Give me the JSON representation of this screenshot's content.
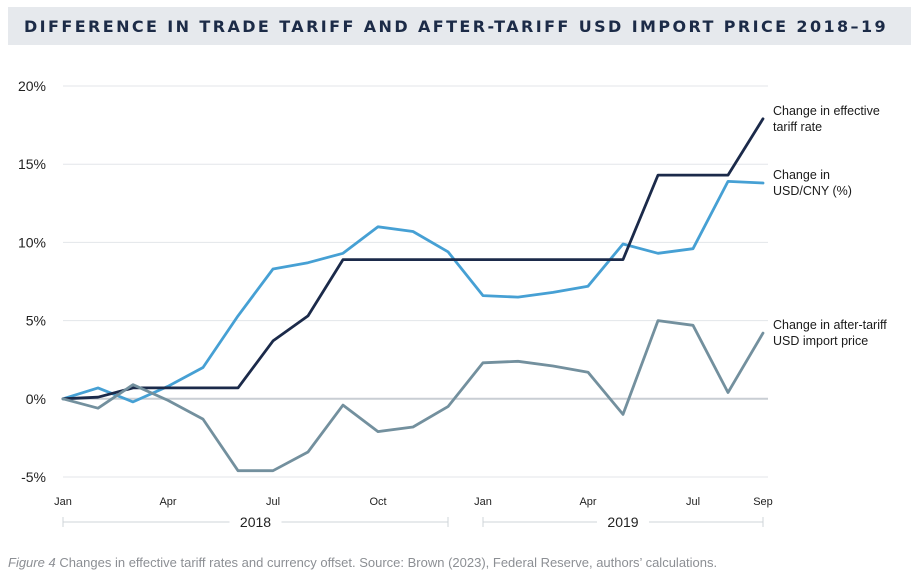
{
  "title": "DIFFERENCE IN TRADE TARIFF AND AFTER-TARIFF USD IMPORT PRICE 2018–19",
  "caption": {
    "figure": "Figure 4",
    "text": " Changes in effective tariff rates and currency offset. Source: Brown (2023), Federal Reserve, authors’ calculations."
  },
  "chart_data": {
    "type": "line",
    "ylim": [
      -5,
      20
    ],
    "y_ticks": [
      -5,
      0,
      5,
      10,
      15,
      20
    ],
    "y_tick_labels": [
      "-5%",
      "0%",
      "5%",
      "10%",
      "15%",
      "20%"
    ],
    "x_count": 21,
    "x_tick_labels": [
      {
        "index": 0,
        "label": "Jan"
      },
      {
        "index": 3,
        "label": "Apr"
      },
      {
        "index": 6,
        "label": "Jul"
      },
      {
        "index": 9,
        "label": "Oct"
      },
      {
        "index": 12,
        "label": "Jan"
      },
      {
        "index": 15,
        "label": "Apr"
      },
      {
        "index": 18,
        "label": "Jul"
      },
      {
        "index": 20,
        "label": "Sep"
      }
    ],
    "year_groups": [
      {
        "label": "2018",
        "start": 0,
        "end": 11
      },
      {
        "label": "2019",
        "start": 12,
        "end": 20
      }
    ],
    "series": [
      {
        "name": "Change in USD/CNY (%)",
        "legend": [
          "Change in",
          "USD/CNY (%)"
        ],
        "color": "#46a0d4",
        "values": [
          0,
          0.7,
          -0.2,
          0.8,
          2.0,
          5.3,
          8.3,
          8.7,
          9.3,
          11.0,
          10.7,
          9.4,
          6.6,
          6.5,
          6.8,
          7.2,
          9.9,
          9.3,
          9.6,
          13.9,
          13.8
        ]
      },
      {
        "name": "Change in effective tariff rate",
        "legend": [
          "Change in effective",
          "tariff rate"
        ],
        "color": "#1b2a4a",
        "values": [
          0,
          0.1,
          0.7,
          0.7,
          0.7,
          0.7,
          3.7,
          5.3,
          8.9,
          8.9,
          8.9,
          8.9,
          8.9,
          8.9,
          8.9,
          8.9,
          8.9,
          14.3,
          14.3,
          14.3,
          17.9
        ]
      },
      {
        "name": "Change in after-tariff USD import price",
        "legend": [
          "Change in after-tariff",
          "USD import price"
        ],
        "color": "#73909e",
        "values": [
          0,
          -0.6,
          0.9,
          -0.1,
          -1.3,
          -4.6,
          -4.6,
          -3.4,
          -0.4,
          -2.1,
          -1.8,
          -0.5,
          2.3,
          2.4,
          2.1,
          1.7,
          -1.0,
          5.0,
          4.7,
          0.4,
          4.2
        ]
      }
    ]
  }
}
